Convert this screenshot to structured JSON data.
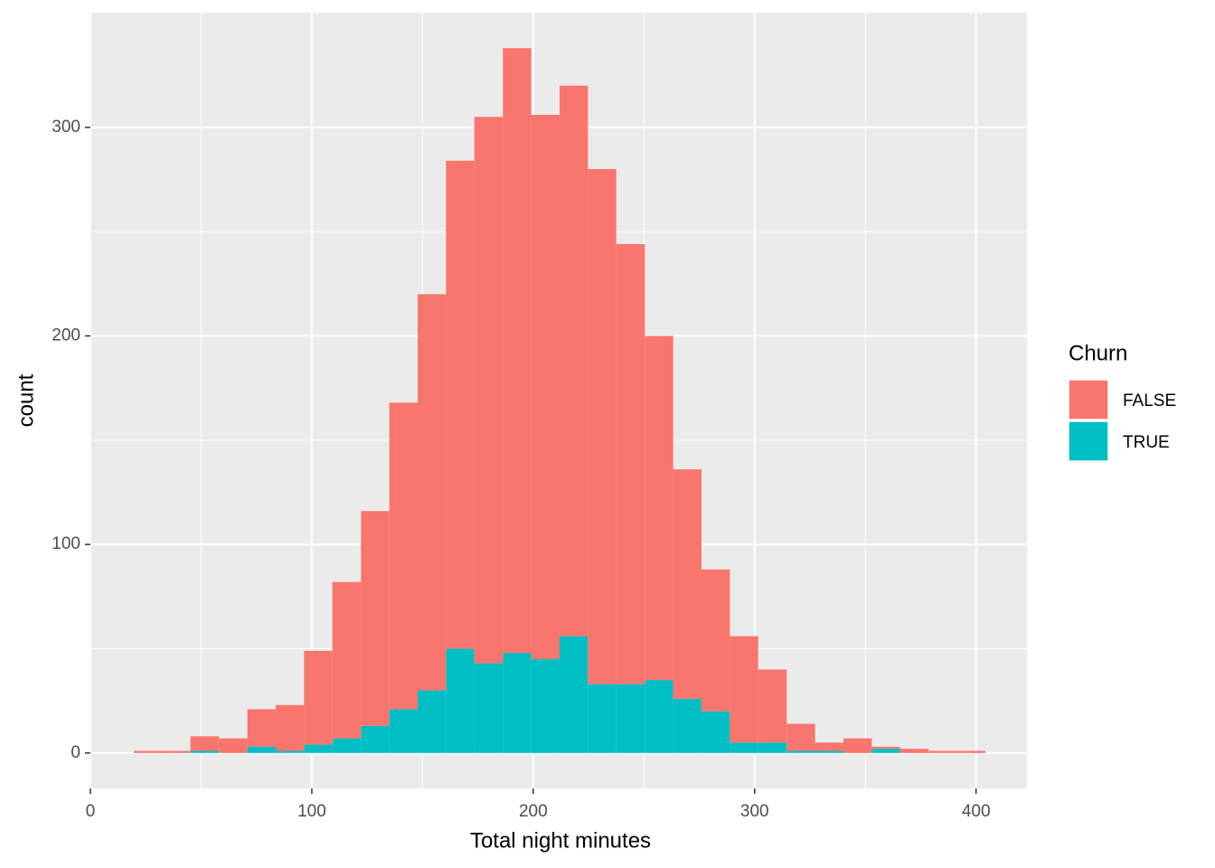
{
  "chart_data": {
    "type": "histogram",
    "x_label": "Total night minutes",
    "y_label": "count",
    "legend_title": "Churn",
    "bins": [
      19.6,
      32.4,
      45.2,
      58.1,
      70.9,
      83.7,
      96.5,
      109.3,
      122.2,
      135.0,
      147.8,
      160.6,
      173.4,
      186.3,
      199.1,
      211.9,
      224.7,
      237.5,
      250.4,
      263.2,
      276.0,
      288.8,
      301.6,
      314.5,
      327.3,
      340.1,
      352.9,
      365.7,
      378.6,
      391.4,
      404.2
    ],
    "series": [
      {
        "name": "FALSE",
        "color": "#F8766D",
        "values": [
          1,
          1,
          7,
          7,
          18,
          22,
          45,
          75,
          103,
          147,
          190,
          234,
          262,
          290,
          261,
          264,
          247,
          211,
          165,
          110,
          68,
          51,
          35,
          13,
          4,
          7,
          1,
          2,
          1,
          1
        ]
      },
      {
        "name": "TRUE",
        "color": "#00BFC4",
        "values": [
          0,
          0,
          1,
          0,
          3,
          1,
          4,
          7,
          13,
          21,
          30,
          50,
          43,
          48,
          45,
          56,
          33,
          33,
          35,
          26,
          20,
          5,
          5,
          1,
          1,
          0,
          2,
          0,
          0,
          0
        ]
      }
    ],
    "stacked": true,
    "xlim": [
      0,
      423
    ],
    "ylim": [
      -17,
      355
    ],
    "xticks": [
      0,
      100,
      200,
      300,
      400
    ],
    "yticks": [
      0,
      100,
      200,
      300
    ],
    "grid": true,
    "legend": "right"
  }
}
